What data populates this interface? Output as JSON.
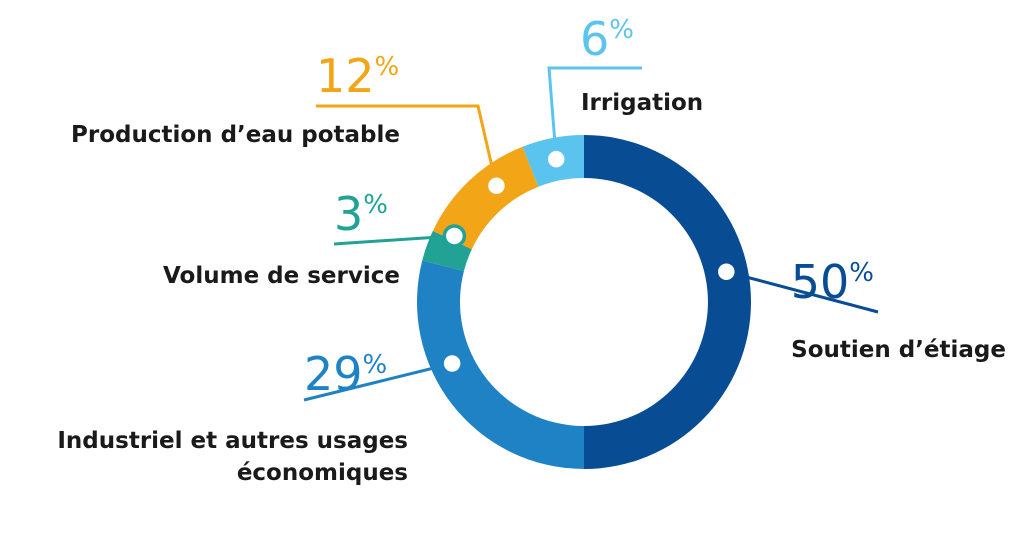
{
  "chart_data": {
    "type": "pie",
    "variant": "donut",
    "percent_sign": "%",
    "slices": [
      {
        "label_lines": [
          "Soutien d’étiage"
        ],
        "value": 50,
        "color": "#084c94",
        "label_side": "right"
      },
      {
        "label_lines": [
          "Industriel et autres usages",
          "économiques"
        ],
        "value": 29,
        "color": "#1f82c5",
        "label_side": "left"
      },
      {
        "label_lines": [
          "Volume de service"
        ],
        "value": 3,
        "color": "#22a195",
        "label_side": "left"
      },
      {
        "label_lines": [
          "Production d’eau potable"
        ],
        "value": 12,
        "color": "#f2a516",
        "label_side": "left"
      },
      {
        "label_lines": [
          "Irrigation"
        ],
        "value": 6,
        "color": "#5bc4ee",
        "label_side": "right"
      }
    ]
  }
}
